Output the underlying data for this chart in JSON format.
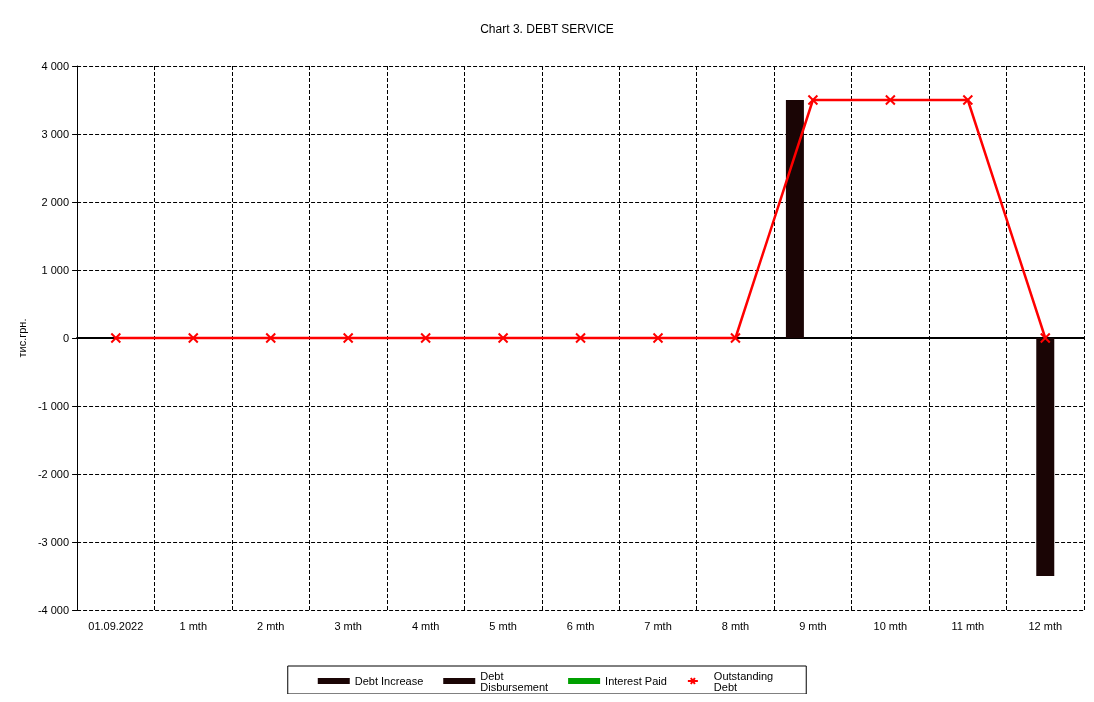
{
  "chart_data": {
    "type": "bar",
    "title": "Chart 3. DEBT SERVICE",
    "ylabel": "тис.грн.",
    "categories": [
      "01.09.2022",
      "1 mth",
      "2 mth",
      "3 mth",
      "4 mth",
      "5 mth",
      "6 mth",
      "7 mth",
      "8 mth",
      "9 mth",
      "10 mth",
      "11 mth",
      "12 mth"
    ],
    "series": [
      {
        "name": "Debt Increase",
        "color": "#1a0505",
        "values": [
          0,
          0,
          0,
          0,
          0,
          0,
          0,
          0,
          0,
          3500,
          0,
          0,
          0
        ]
      },
      {
        "name": "Debt Disbursement",
        "color": "#1a0505",
        "values": [
          0,
          0,
          0,
          0,
          0,
          0,
          0,
          0,
          0,
          0,
          0,
          0,
          -3500
        ]
      },
      {
        "name": "Interest Paid",
        "color": "#00a000",
        "values": [
          0,
          0,
          0,
          0,
          0,
          0,
          0,
          0,
          0,
          0,
          0,
          0,
          0
        ]
      },
      {
        "name": "Outstanding Debt",
        "type": "line",
        "color": "#ff0000",
        "values": [
          0,
          0,
          0,
          0,
          0,
          0,
          0,
          0,
          0,
          3500,
          3500,
          3500,
          0
        ]
      }
    ],
    "ylim": [
      -4000,
      4000
    ],
    "yticks": [
      {
        "value": -4000,
        "label": "-4 000"
      },
      {
        "value": -3000,
        "label": "-3 000"
      },
      {
        "value": -2000,
        "label": "-2 000"
      },
      {
        "value": -1000,
        "label": "-1 000"
      },
      0,
      {
        "value": 1000,
        "label": "1 000"
      },
      {
        "value": 2000,
        "label": "2 000"
      },
      {
        "value": 3000,
        "label": "3 000"
      },
      {
        "value": 4000,
        "label": "4 000"
      }
    ],
    "grid": true,
    "legend": "bottom",
    "marker": "cross",
    "line_style": "solid"
  }
}
